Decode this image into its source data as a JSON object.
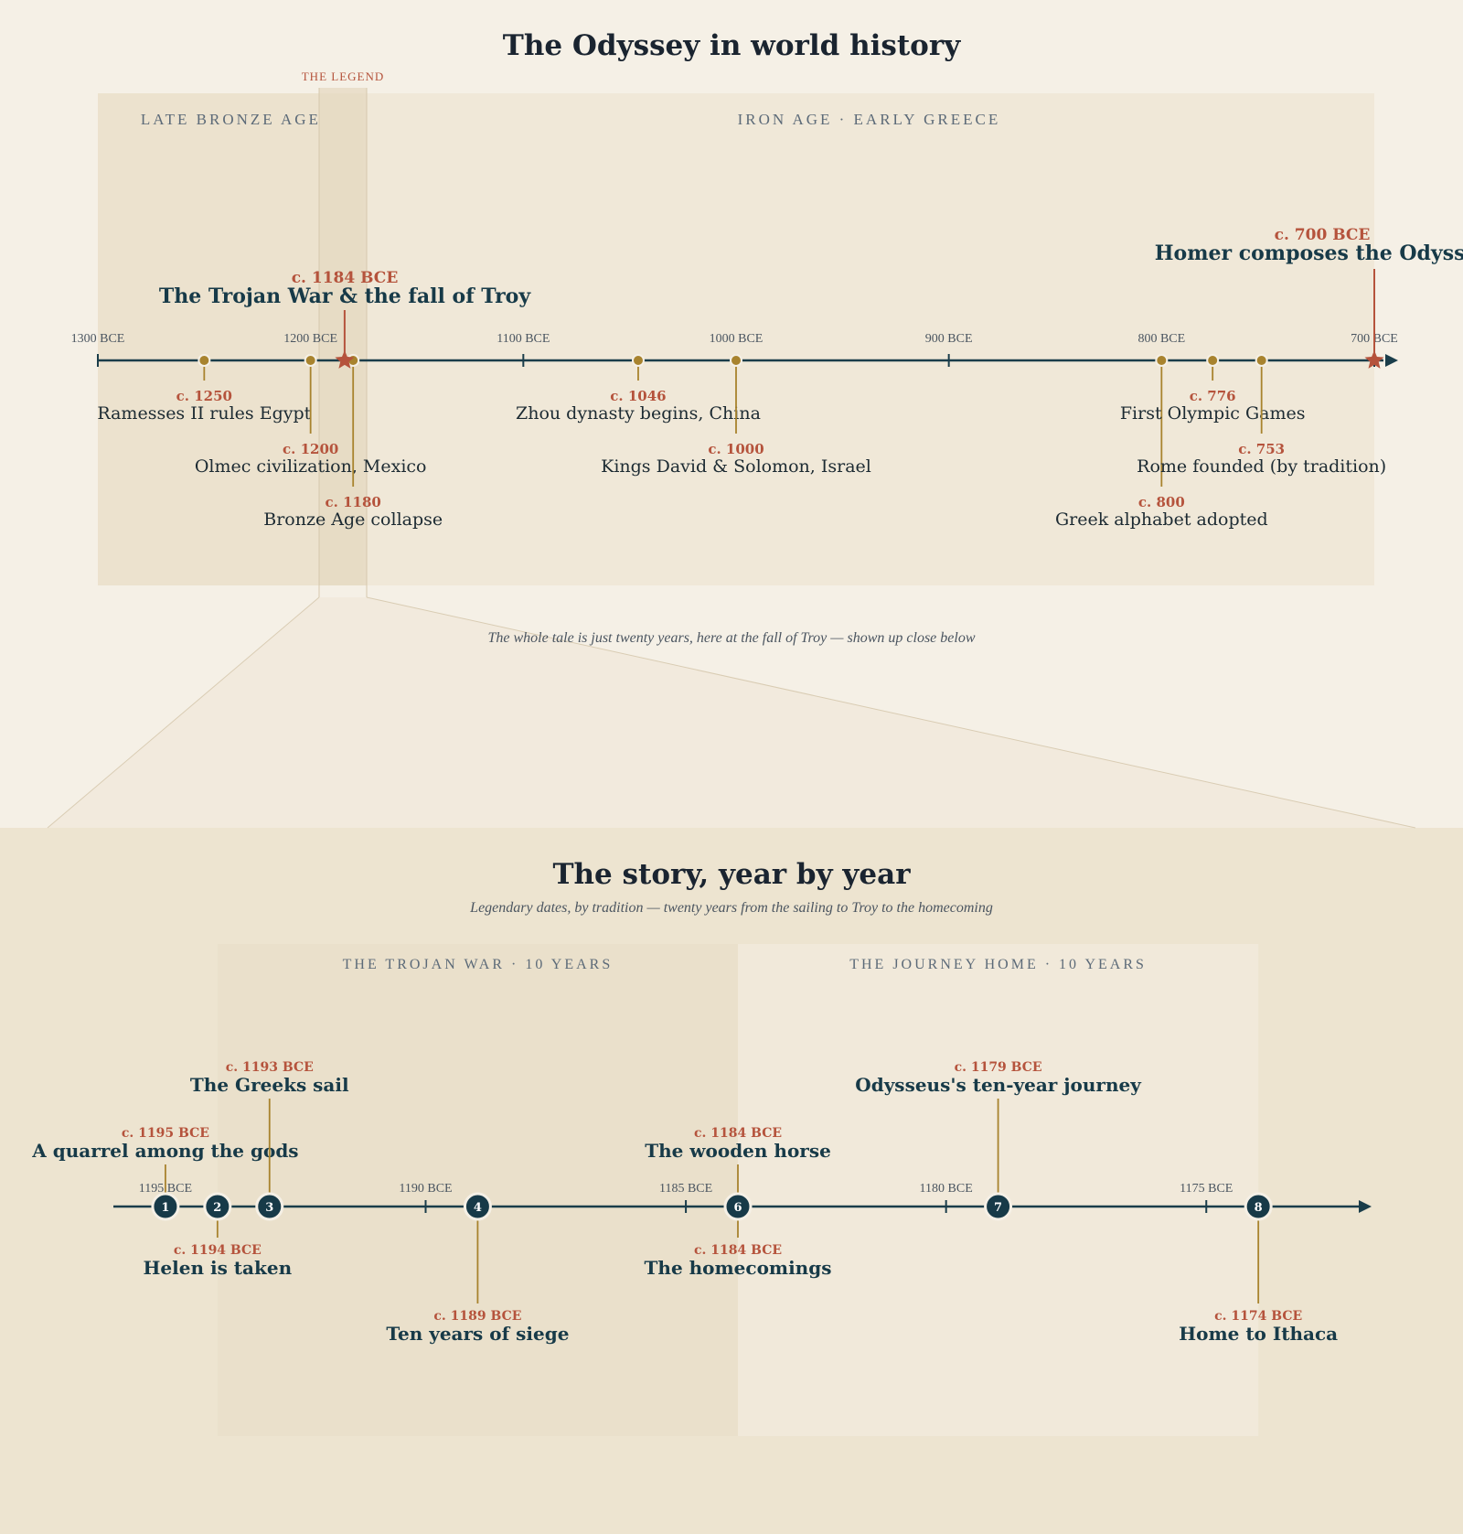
{
  "page": {
    "title": "The Odyssey in world history",
    "legend_tag": "THE LEGEND",
    "zoom_caption": "The whole tale is just twenty years, here at the fall of Troy — shown up close below"
  },
  "colors": {
    "axis": "#1a3d4a",
    "accent": "#b5533c",
    "gold": "#a8832e",
    "bg": "#f5f0e6",
    "panel": "#efe6d5"
  },
  "chart_data": [
    {
      "type": "timeline",
      "name": "world",
      "xlim": [
        1300,
        700
      ],
      "ticks": [
        {
          "value": 1300,
          "label": "1300 BCE"
        },
        {
          "value": 1200,
          "label": "1200 BCE"
        },
        {
          "value": 1100,
          "label": "1100 BCE"
        },
        {
          "value": 1000,
          "label": "1000 BCE"
        },
        {
          "value": 900,
          "label": "900 BCE"
        },
        {
          "value": 800,
          "label": "800 BCE"
        },
        {
          "value": 700,
          "label": "700 BCE"
        }
      ],
      "eras": [
        {
          "label": "LATE BRONZE AGE",
          "from": 1300,
          "to": 1175
        },
        {
          "label": "IRON AGE · EARLY GREECE",
          "from": 1175,
          "to": 700
        }
      ],
      "highlights": [
        {
          "year": 1184,
          "date": "c. 1184 BCE",
          "label": "The Trojan War & the fall of Troy"
        },
        {
          "year": 700,
          "date": "c. 700 BCE",
          "label": "Homer composes the Odyssey"
        }
      ],
      "events": [
        {
          "year": 1250,
          "date": "c. 1250",
          "label": "Ramesses II rules Egypt",
          "level": 1
        },
        {
          "year": 1200,
          "date": "c. 1200",
          "label": "Olmec civilization, Mexico",
          "level": 2
        },
        {
          "year": 1180,
          "date": "c. 1180",
          "label": "Bronze Age collapse",
          "level": 3
        },
        {
          "year": 1046,
          "date": "c. 1046",
          "label": "Zhou dynasty begins, China",
          "level": 1
        },
        {
          "year": 1000,
          "date": "c. 1000",
          "label": "Kings David & Solomon, Israel",
          "level": 2
        },
        {
          "year": 800,
          "date": "c. 800",
          "label": "Greek alphabet adopted",
          "level": 3
        },
        {
          "year": 776,
          "date": "c. 776",
          "label": "First Olympic Games",
          "level": 1
        },
        {
          "year": 753,
          "date": "c. 753",
          "label": "Rome founded (by tradition)",
          "level": 2
        }
      ]
    },
    {
      "type": "timeline",
      "name": "story",
      "title": "The story, year by year",
      "subtitle": "Legendary dates, by tradition — twenty years from the sailing to Troy to the homecoming",
      "xlim": [
        1196,
        1172
      ],
      "ticks": [
        {
          "value": 1195,
          "label": "1195 BCE"
        },
        {
          "value": 1190,
          "label": "1190 BCE"
        },
        {
          "value": 1185,
          "label": "1185 BCE"
        },
        {
          "value": 1180,
          "label": "1180 BCE"
        },
        {
          "value": 1175,
          "label": "1175 BCE"
        }
      ],
      "eras": [
        {
          "label": "THE TROJAN WAR · 10 YEARS",
          "from": 1194,
          "to": 1184
        },
        {
          "label": "THE JOURNEY HOME · 10 YEARS",
          "from": 1184,
          "to": 1174
        }
      ],
      "events": [
        {
          "n": "1",
          "year": 1195,
          "date": "c. 1195 BCE",
          "label": "A quarrel among the gods",
          "level": 1
        },
        {
          "n": "2",
          "year": 1194,
          "date": "c. 1194 BCE",
          "label": "Helen is taken",
          "level": -1
        },
        {
          "n": "3",
          "year": 1193,
          "date": "c. 1193 BCE",
          "label": "The Greeks sail",
          "level": 2
        },
        {
          "n": "4",
          "year": 1189,
          "date": "c. 1189 BCE",
          "label": "Ten years of siege",
          "level": -2
        },
        {
          "n": "6",
          "year": 1184,
          "date": "c. 1184 BCE",
          "label": "The wooden horse",
          "level": 1
        },
        {
          "n": "6b",
          "year": 1184,
          "date": "c. 1184 BCE",
          "label": "The homecomings",
          "level": -1
        },
        {
          "n": "7",
          "year": 1179,
          "date": "c. 1179 BCE",
          "label": "Odysseus's ten-year journey",
          "level": 2
        },
        {
          "n": "8",
          "year": 1174,
          "date": "c. 1174 BCE",
          "label": "Home to Ithaca",
          "level": -2
        }
      ],
      "markers": [
        "1",
        "2",
        "3",
        "4",
        "6",
        "7",
        "8"
      ]
    }
  ]
}
